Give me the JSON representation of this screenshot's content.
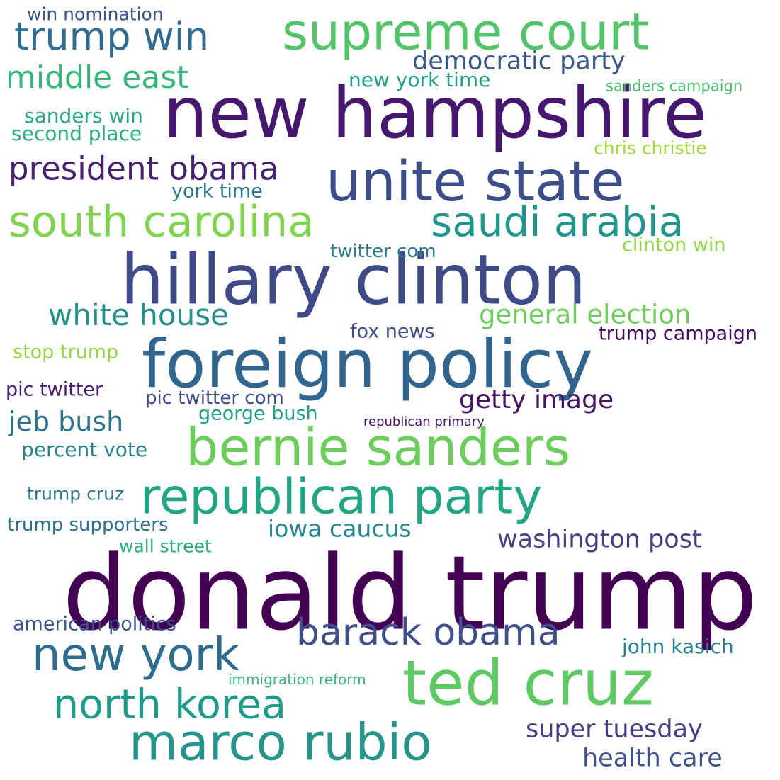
{
  "words": [
    {
      "text": "donald trump",
      "color": "#440154"
    },
    {
      "text": "new hampshire",
      "color": "#46176f"
    },
    {
      "text": "hillary clinton",
      "color": "#3f4a89"
    },
    {
      "text": "foreign policy",
      "color": "#31658e"
    },
    {
      "text": "unite state",
      "color": "#3d4d8a"
    },
    {
      "text": "supreme court",
      "color": "#53c568"
    },
    {
      "text": "ted cruz",
      "color": "#5ec962"
    },
    {
      "text": "bernie sanders",
      "color": "#6ccd5a"
    },
    {
      "text": "republican party",
      "color": "#21a685"
    },
    {
      "text": "marco rubio",
      "color": "#25958b"
    },
    {
      "text": "south carolina",
      "color": "#7fd34e"
    },
    {
      "text": "saudi arabia",
      "color": "#1f958b"
    },
    {
      "text": "new york",
      "color": "#2e6c8e"
    },
    {
      "text": "north korea",
      "color": "#1e9b8a"
    },
    {
      "text": "barack obama",
      "color": "#3d4e8a"
    },
    {
      "text": "trump win",
      "color": "#2f6b8e"
    },
    {
      "text": "president obama",
      "color": "#482173"
    },
    {
      "text": "middle east",
      "color": "#35b779"
    },
    {
      "text": "white house",
      "color": "#21908d"
    },
    {
      "text": "general election",
      "color": "#6ccd5a"
    },
    {
      "text": "democratic party",
      "color": "#38588c"
    },
    {
      "text": "jeb bush",
      "color": "#2c728e"
    },
    {
      "text": "getty image",
      "color": "#471365"
    },
    {
      "text": "iowa caucus",
      "color": "#23898e"
    },
    {
      "text": "washington post",
      "color": "#423f85"
    },
    {
      "text": "super tuesday",
      "color": "#433e85"
    },
    {
      "text": "health care",
      "color": "#3b528b"
    },
    {
      "text": "john kasich",
      "color": "#26828e"
    },
    {
      "text": "sanders win",
      "color": "#22a884"
    },
    {
      "text": "second place",
      "color": "#29af7f"
    },
    {
      "text": "new york time",
      "color": "#1fa088"
    },
    {
      "text": "york time",
      "color": "#2a788e"
    },
    {
      "text": "twitter com",
      "color": "#297b8e"
    },
    {
      "text": "fox news",
      "color": "#3e4a89"
    },
    {
      "text": "trump campaign",
      "color": "#46085c"
    },
    {
      "text": "clinton win",
      "color": "#8fd744"
    },
    {
      "text": "chris christie",
      "color": "#a2da37"
    },
    {
      "text": "sanders campaign",
      "color": "#4ac16d"
    },
    {
      "text": "win nomination",
      "color": "#39568c"
    },
    {
      "text": "stop trump",
      "color": "#95d840"
    },
    {
      "text": "pic twitter",
      "color": "#481f70"
    },
    {
      "text": "pic twitter com",
      "color": "#3e4989"
    },
    {
      "text": "george bush",
      "color": "#1fa088"
    },
    {
      "text": "republican primary",
      "color": "#481467"
    },
    {
      "text": "percent vote",
      "color": "#25848e"
    },
    {
      "text": "trump cruz",
      "color": "#2a788e"
    },
    {
      "text": "trump supporters",
      "color": "#2c718e"
    },
    {
      "text": "wall street",
      "color": "#27ad81"
    },
    {
      "text": "american politics",
      "color": "#3b518b"
    },
    {
      "text": "immigration reform",
      "color": "#35b779"
    }
  ]
}
